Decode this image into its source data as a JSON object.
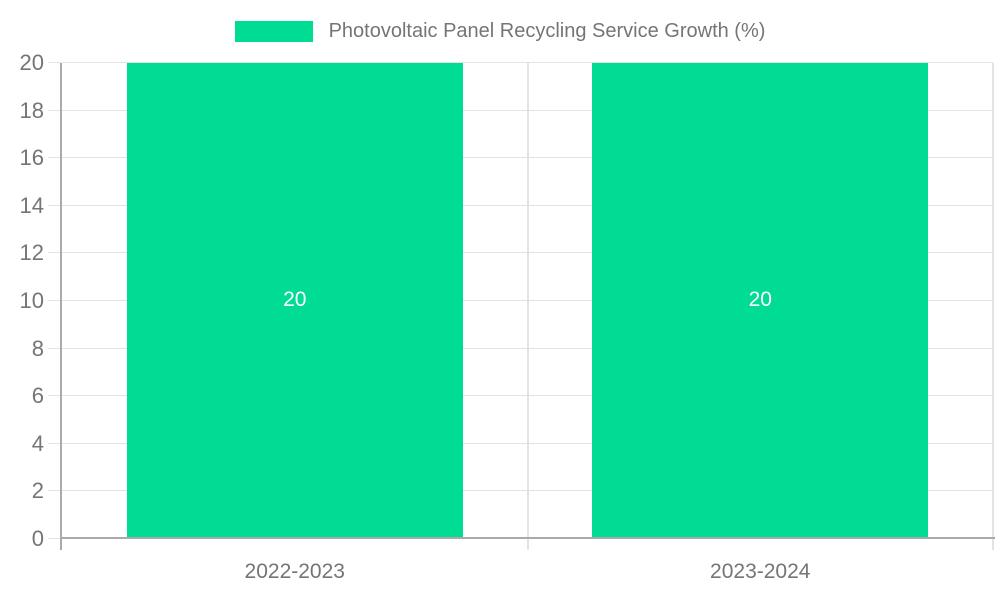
{
  "chart_data": {
    "type": "bar",
    "title": "Photovoltaic Panel Recycling Service Growth (%)",
    "legend": {
      "label": "Photovoltaic Panel Recycling Service Growth (%)",
      "position": "top-center"
    },
    "categories": [
      "2022-2023",
      "2023-2024"
    ],
    "values": [
      20,
      20
    ],
    "data_labels": [
      "20",
      "20"
    ],
    "xlabel": "",
    "ylabel": "",
    "ylim": [
      0,
      20
    ],
    "ytick_interval": 2,
    "yticks": [
      0,
      2,
      4,
      6,
      8,
      10,
      12,
      14,
      16,
      18,
      20
    ],
    "grid": true,
    "colors": {
      "bar": "#00DC94",
      "grid_line": "#e3e3e3",
      "split_line": "#e3e3e3",
      "axis_line": "#aaaaaa",
      "axis_text": "#757575",
      "legend_text": "#757575",
      "data_label": "#ffffff",
      "background": "#ffffff"
    }
  }
}
